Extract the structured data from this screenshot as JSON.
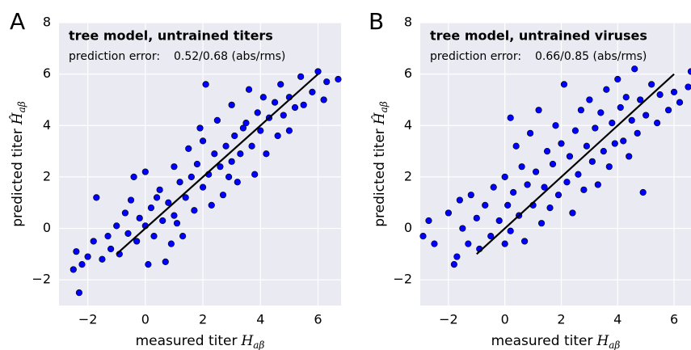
{
  "chart_data": [
    {
      "type": "scatter",
      "panel": "A",
      "title": "tree model, untrained titers",
      "error_label": "prediction error:",
      "error_value": "0.52/0.68 (abs/rms)",
      "xlabel": "measured titer",
      "xlabel_symbol": "H",
      "xlabel_sub": "aβ",
      "ylabel": "predicted titer",
      "ylabel_symbol": "Ĥ",
      "ylabel_sub": "aβ",
      "xlim": [
        -3,
        6.8
      ],
      "ylim": [
        -3,
        8
      ],
      "xticks": [
        {
          "value": -2,
          "label": "−2"
        },
        0,
        2,
        4,
        6
      ],
      "yticks": [
        {
          "value": -2,
          "label": "−2"
        },
        0,
        2,
        4,
        6,
        8
      ],
      "grid": true,
      "fit_line": {
        "x": [
          -1,
          6
        ],
        "y": [
          -1,
          6
        ],
        "color": "#000000"
      },
      "series": [
        {
          "color": "#0000ff",
          "x": [
            -2.5,
            -2.4,
            -2.3,
            -2.2,
            -2.0,
            -1.8,
            -1.7,
            -1.5,
            -1.3,
            -1.2,
            -1.0,
            -0.9,
            -0.7,
            -0.6,
            -0.5,
            -0.3,
            -0.2,
            0,
            0,
            0.1,
            0.2,
            0.3,
            0.5,
            0.6,
            0.7,
            0.8,
            1.0,
            1.0,
            1.2,
            1.3,
            1.4,
            1.5,
            1.6,
            1.7,
            1.8,
            2.0,
            2.0,
            2.2,
            2.3,
            2.4,
            2.5,
            2.6,
            2.7,
            2.8,
            3.0,
            3.0,
            3.1,
            3.2,
            3.3,
            3.5,
            3.6,
            3.7,
            3.8,
            3.9,
            4.0,
            4.1,
            4.2,
            4.3,
            4.5,
            4.6,
            4.7,
            4.8,
            5.0,
            5.0,
            5.2,
            5.4,
            5.5,
            5.8,
            6.0,
            6.2,
            6.3,
            6.7,
            -0.4,
            0.9,
            2.1,
            1.1,
            1.9,
            0.4,
            3.4,
            2.9
          ],
          "y": [
            -1.6,
            -0.9,
            -2.5,
            -1.4,
            -1.1,
            -0.5,
            1.2,
            -1.2,
            -0.3,
            -0.8,
            0.1,
            -1.0,
            0.6,
            -0.2,
            1.1,
            -0.5,
            0.4,
            0.1,
            2.2,
            -1.4,
            0.8,
            -0.3,
            1.5,
            0.3,
            -1.3,
            1.0,
            2.4,
            0.5,
            1.8,
            -0.3,
            1.2,
            3.1,
            2.0,
            0.7,
            2.5,
            1.6,
            3.4,
            2.1,
            0.9,
            2.9,
            4.2,
            2.4,
            1.3,
            3.2,
            2.6,
            4.8,
            3.6,
            1.8,
            2.9,
            4.1,
            5.4,
            3.2,
            2.1,
            4.5,
            3.8,
            5.1,
            2.9,
            4.3,
            4.9,
            3.6,
            5.6,
            4.4,
            5.1,
            3.8,
            4.7,
            5.9,
            4.8,
            5.3,
            6.1,
            5.0,
            5.7,
            5.8,
            2.0,
            -0.6,
            5.6,
            0.2,
            3.9,
            1.2,
            3.9,
            2.0
          ]
        }
      ]
    },
    {
      "type": "scatter",
      "panel": "B",
      "title": "tree model, untrained viruses",
      "error_label": "prediction error:",
      "error_value": "0.66/0.85 (abs/rms)",
      "xlabel": "measured titer",
      "xlabel_symbol": "H",
      "xlabel_sub": "aβ",
      "ylabel": "predicted titer",
      "ylabel_symbol": "Ĥ",
      "ylabel_sub": "aβ",
      "xlim": [
        -3,
        6.6
      ],
      "ylim": [
        -3,
        8
      ],
      "xticks": [
        {
          "value": -2,
          "label": "−2"
        },
        0,
        2,
        4,
        6
      ],
      "yticks": [
        {
          "value": -2,
          "label": "−2"
        },
        0,
        2,
        4,
        6,
        8
      ],
      "grid": true,
      "fit_line": {
        "x": [
          -1,
          6
        ],
        "y": [
          -1,
          6
        ],
        "color": "#000000"
      },
      "series": [
        {
          "color": "#0000ff",
          "x": [
            -2.9,
            -2.7,
            -2.5,
            -2.0,
            -1.8,
            -1.7,
            -1.6,
            -1.5,
            -1.3,
            -1.2,
            -1.0,
            -0.9,
            -0.7,
            -0.5,
            -0.4,
            -0.2,
            0,
            0,
            0.1,
            0.2,
            0.3,
            0.4,
            0.5,
            0.6,
            0.7,
            0.8,
            0.9,
            1.0,
            1.1,
            1.2,
            1.3,
            1.4,
            1.5,
            1.6,
            1.7,
            1.8,
            1.9,
            2.0,
            2.1,
            2.2,
            2.3,
            2.4,
            2.5,
            2.6,
            2.7,
            2.8,
            2.9,
            3.0,
            3.1,
            3.2,
            3.3,
            3.4,
            3.5,
            3.6,
            3.7,
            3.8,
            3.9,
            4.0,
            4.1,
            4.2,
            4.3,
            4.4,
            4.5,
            4.6,
            4.7,
            4.8,
            4.9,
            5.0,
            5.2,
            5.4,
            5.5,
            5.8,
            6.0,
            6.2,
            6.5,
            6.6,
            0.2
          ],
          "y": [
            -0.3,
            0.3,
            -0.6,
            0.6,
            -1.4,
            -1.1,
            1.1,
            0.0,
            -0.6,
            1.3,
            0.4,
            -0.8,
            0.9,
            -0.3,
            1.6,
            0.3,
            -0.6,
            2.0,
            0.9,
            -0.1,
            1.4,
            3.2,
            0.5,
            2.4,
            -0.5,
            1.7,
            3.7,
            0.9,
            2.2,
            4.6,
            0.2,
            1.6,
            3.0,
            0.8,
            2.5,
            4.0,
            1.3,
            3.3,
            5.6,
            1.8,
            2.8,
            0.6,
            3.8,
            2.1,
            4.6,
            1.5,
            3.2,
            5.0,
            2.6,
            3.9,
            1.7,
            4.5,
            3.0,
            5.4,
            2.4,
            4.1,
            3.3,
            5.8,
            4.7,
            3.4,
            5.1,
            2.8,
            4.2,
            6.2,
            3.7,
            5.0,
            1.4,
            4.4,
            5.6,
            4.1,
            5.2,
            4.6,
            5.3,
            4.9,
            5.5,
            6.1,
            4.3
          ]
        }
      ]
    }
  ]
}
